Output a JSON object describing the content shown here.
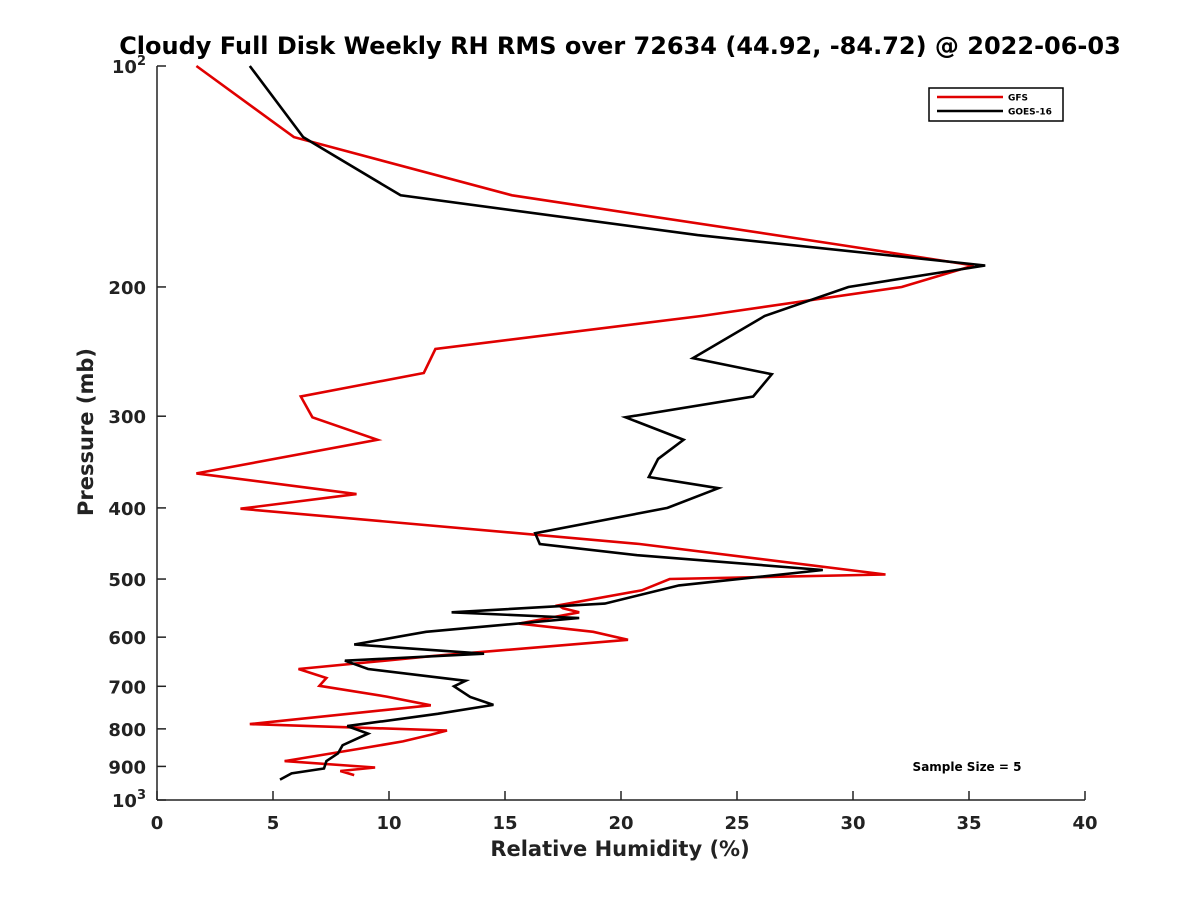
{
  "chart_data": {
    "type": "line",
    "title": "Cloudy Full Disk Weekly RH RMS over 72634 (44.92, -84.72) @ 2022-06-03",
    "xlabel": "Relative Humidity (%)",
    "ylabel": "Pressure (mb)",
    "xlim": [
      0,
      40
    ],
    "ylim": [
      100,
      1000
    ],
    "y_scale": "log",
    "y_reversed": true,
    "grid": false,
    "x_ticks": [
      0,
      5,
      10,
      15,
      20,
      25,
      30,
      35,
      40
    ],
    "x_tick_labels": [
      "0",
      "5",
      "10",
      "15",
      "20",
      "25",
      "30",
      "35",
      "40"
    ],
    "y_ticks": [
      {
        "value": 100,
        "base": "10",
        "exp": "2"
      },
      {
        "value": 200,
        "label": "200"
      },
      {
        "value": 300,
        "label": "300"
      },
      {
        "value": 400,
        "label": "400"
      },
      {
        "value": 500,
        "label": "500"
      },
      {
        "value": 600,
        "label": "600"
      },
      {
        "value": 700,
        "label": "700"
      },
      {
        "value": 800,
        "label": "800"
      },
      {
        "value": 900,
        "label": "900"
      },
      {
        "value": 1000,
        "base": "10",
        "exp": "3"
      }
    ],
    "legend_position": "top-right",
    "annotation": "Sample Size = 5",
    "series": [
      {
        "name": "GFS",
        "color": "#e00000",
        "points": [
          [
            1.7,
            100
          ],
          [
            5.9,
            125
          ],
          [
            15.3,
            150
          ],
          [
            29.3,
            175
          ],
          [
            35.2,
            187
          ],
          [
            32.1,
            200
          ],
          [
            23.5,
            219
          ],
          [
            12.0,
            243
          ],
          [
            11.5,
            262
          ],
          [
            6.2,
            282
          ],
          [
            6.7,
            301
          ],
          [
            9.5,
            323
          ],
          [
            1.7,
            359
          ],
          [
            8.6,
            383
          ],
          [
            3.6,
            401
          ],
          [
            20.8,
            448
          ],
          [
            31.4,
            493
          ],
          [
            22.1,
            500
          ],
          [
            20.9,
            518
          ],
          [
            17.3,
            543
          ],
          [
            17.5,
            548
          ],
          [
            18.2,
            555
          ],
          [
            15.6,
            575
          ],
          [
            18.8,
            590
          ],
          [
            20.3,
            605
          ],
          [
            11.8,
            637
          ],
          [
            6.1,
            663
          ],
          [
            7.3,
            682
          ],
          [
            7.0,
            699
          ],
          [
            9.9,
            723
          ],
          [
            11.8,
            743
          ],
          [
            4.0,
            788
          ],
          [
            12.5,
            804
          ],
          [
            11.8,
            815
          ],
          [
            10.6,
            832
          ],
          [
            8.7,
            852
          ],
          [
            5.5,
            885
          ],
          [
            9.4,
            903
          ],
          [
            7.9,
            913
          ],
          [
            8.5,
            925
          ]
        ]
      },
      {
        "name": "GOES-16",
        "color": "#000000",
        "points": [
          [
            4.0,
            100
          ],
          [
            6.3,
            125
          ],
          [
            10.5,
            150
          ],
          [
            23.3,
            170
          ],
          [
            35.7,
            187
          ],
          [
            29.8,
            200
          ],
          [
            26.2,
            219
          ],
          [
            23.1,
            250
          ],
          [
            26.5,
            263
          ],
          [
            25.7,
            282
          ],
          [
            20.2,
            301
          ],
          [
            22.7,
            323
          ],
          [
            21.6,
            343
          ],
          [
            21.2,
            363
          ],
          [
            24.2,
            376
          ],
          [
            22.0,
            400
          ],
          [
            16.3,
            433
          ],
          [
            16.5,
            448
          ],
          [
            20.7,
            464
          ],
          [
            28.7,
            486
          ],
          [
            22.5,
            510
          ],
          [
            19.3,
            540
          ],
          [
            12.7,
            555
          ],
          [
            18.2,
            565
          ],
          [
            11.6,
            590
          ],
          [
            8.5,
            614
          ],
          [
            14.1,
            632
          ],
          [
            8.1,
            646
          ],
          [
            9.1,
            663
          ],
          [
            13.3,
            688
          ],
          [
            12.8,
            700
          ],
          [
            13.5,
            724
          ],
          [
            14.5,
            742
          ],
          [
            12.1,
            763
          ],
          [
            8.2,
            793
          ],
          [
            9.1,
            812
          ],
          [
            8.0,
            842
          ],
          [
            7.8,
            864
          ],
          [
            7.3,
            885
          ],
          [
            7.2,
            906
          ],
          [
            5.8,
            920
          ],
          [
            5.3,
            938
          ]
        ]
      }
    ]
  }
}
